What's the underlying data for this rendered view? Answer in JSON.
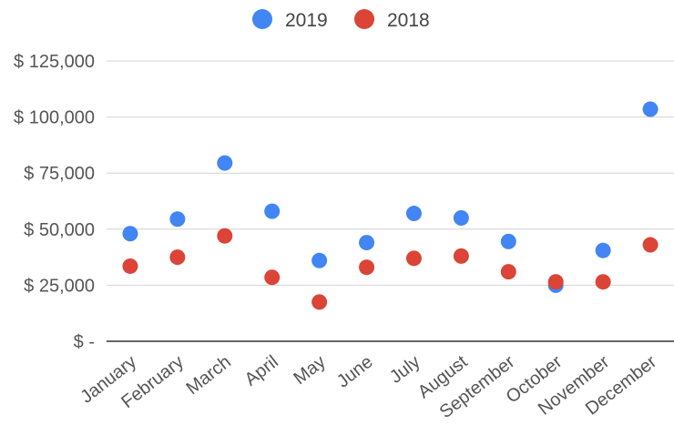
{
  "chart_data": {
    "type": "scatter",
    "title": "",
    "xlabel": "",
    "ylabel": "",
    "categories": [
      "January",
      "February",
      "March",
      "April",
      "May",
      "June",
      "July",
      "August",
      "September",
      "October",
      "November",
      "December"
    ],
    "series": [
      {
        "name": "2019",
        "color": "#4285F4",
        "values": [
          48000,
          54500,
          79500,
          58000,
          36000,
          44000,
          57000,
          55000,
          44500,
          25000,
          40500,
          103500
        ]
      },
      {
        "name": "2018",
        "color": "#DB4437",
        "values": [
          33500,
          37500,
          47000,
          28500,
          17500,
          33000,
          37000,
          38000,
          31000,
          26500,
          26500,
          43000
        ]
      }
    ],
    "ylim": [
      0,
      125000
    ],
    "yticks": [
      {
        "value": 0,
        "label": "$ -"
      },
      {
        "value": 25000,
        "label": "$ 25,000"
      },
      {
        "value": 50000,
        "label": "$ 50,000"
      },
      {
        "value": 75000,
        "label": "$ 75,000"
      },
      {
        "value": 100000,
        "label": "$ 100,000"
      },
      {
        "value": 125000,
        "label": "$ 125,000"
      }
    ],
    "grid": true,
    "legend_position": "top"
  }
}
